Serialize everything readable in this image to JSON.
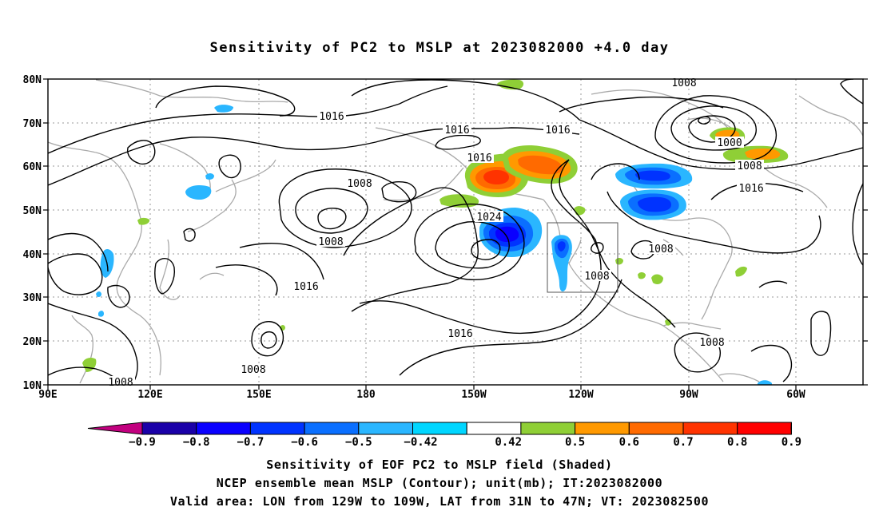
{
  "title": "Sensitivity of PC2 to MSLP at 2023082000 +4.0 day",
  "axes": {
    "lat_labels": [
      "80N",
      "70N",
      "60N",
      "50N",
      "40N",
      "30N",
      "20N",
      "10N"
    ],
    "lon_labels": [
      "90E",
      "120E",
      "150E",
      "180",
      "150W",
      "120W",
      "90W",
      "60W"
    ]
  },
  "contour_labels": [
    "1008",
    "1000",
    "1008",
    "1016",
    "1016",
    "1016",
    "1016",
    "1016",
    "1008",
    "1008",
    "1024",
    "1008",
    "1008",
    "1016",
    "1016",
    "1008",
    "1008",
    "1008"
  ],
  "colorbar": {
    "labels": [
      "−0.9",
      "−0.8",
      "−0.7",
      "−0.6",
      "−0.5",
      "−0.42",
      "0.42",
      "0.5",
      "0.6",
      "0.7",
      "0.8",
      "0.9"
    ],
    "colors": [
      "#c2007f",
      "#1a00a8",
      "#0a00ff",
      "#0033ff",
      "#0a6fff",
      "#2ab6ff",
      "#00d6ff",
      "#ffffff",
      "#8fcf36",
      "#ff9900",
      "#ff6a00",
      "#ff3300",
      "#ff0000",
      "#f7a6d3"
    ]
  },
  "footer": {
    "line1": "Sensitivity of EOF PC2 to MSLP field (Shaded)",
    "line2": "NCEP ensemble mean MSLP (Contour); unit(mb); IT:2023082000",
    "line3": "Valid area: LON from 129W to 109W, LAT from 31N to 47N; VT: 2023082500"
  }
}
